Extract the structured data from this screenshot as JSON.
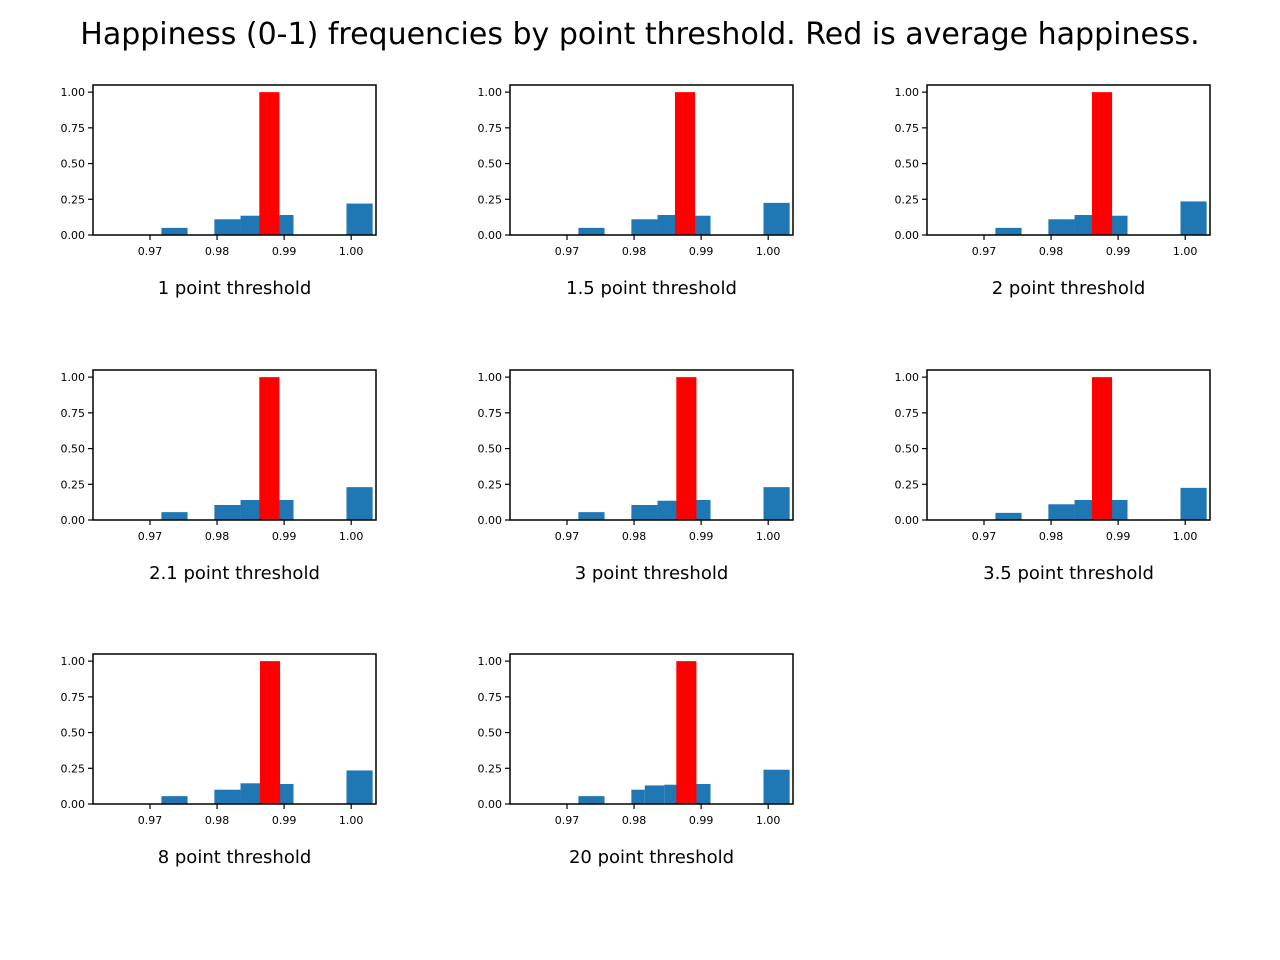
{
  "figure": {
    "title": "Happiness (0-1) frequencies by point threshold. Red is average happiness."
  },
  "colors": {
    "histogram": "#1f77b4",
    "average": "#ff0000"
  },
  "chart_data": [
    {
      "type": "bar",
      "xlabel": "1 point threshold",
      "ylabel": "",
      "xlim": [
        0.9615,
        1.0037
      ],
      "ylim": [
        0,
        1.05
      ],
      "xticks": [
        "0.97",
        "0.98",
        "0.99",
        "1.00"
      ],
      "yticks": [
        "0.00",
        "0.25",
        "0.50",
        "0.75",
        "1.00"
      ],
      "grid": false,
      "series": [
        {
          "bins": [
            {
              "x0": 0.9717,
              "x1": 0.9756,
              "value": 0.05
            },
            {
              "x0": 0.9796,
              "x1": 0.9835,
              "value": 0.11
            },
            {
              "x0": 0.9835,
              "x1": 0.9874,
              "value": 0.135
            },
            {
              "x0": 0.9874,
              "x1": 0.9914,
              "value": 0.14
            },
            {
              "x0": 0.9953,
              "x1": 0.9993,
              "value": 0.0
            },
            {
              "x0": 0.9993,
              "x1": 1.0032,
              "value": 0.22
            }
          ]
        },
        {
          "bins": [
            {
              "x0": 0.9863,
              "x1": 0.9893,
              "value": 1.0
            }
          ]
        }
      ]
    },
    {
      "type": "bar",
      "xlabel": "1.5 point threshold",
      "ylabel": "",
      "xlim": [
        0.9615,
        1.0037
      ],
      "ylim": [
        0,
        1.05
      ],
      "xticks": [
        "0.97",
        "0.98",
        "0.99",
        "1.00"
      ],
      "yticks": [
        "0.00",
        "0.25",
        "0.50",
        "0.75",
        "1.00"
      ],
      "grid": false,
      "series": [
        {
          "bins": [
            {
              "x0": 0.9717,
              "x1": 0.9756,
              "value": 0.05
            },
            {
              "x0": 0.9796,
              "x1": 0.9835,
              "value": 0.11
            },
            {
              "x0": 0.9835,
              "x1": 0.9874,
              "value": 0.14
            },
            {
              "x0": 0.9874,
              "x1": 0.9914,
              "value": 0.135
            },
            {
              "x0": 0.9993,
              "x1": 1.0032,
              "value": 0.225
            }
          ]
        },
        {
          "bins": [
            {
              "x0": 0.9861,
              "x1": 0.9891,
              "value": 1.0
            }
          ]
        }
      ]
    },
    {
      "type": "bar",
      "xlabel": "2 point threshold",
      "ylabel": "",
      "xlim": [
        0.9615,
        1.0037
      ],
      "ylim": [
        0,
        1.05
      ],
      "xticks": [
        "0.97",
        "0.98",
        "0.99",
        "1.00"
      ],
      "yticks": [
        "0.00",
        "0.25",
        "0.50",
        "0.75",
        "1.00"
      ],
      "grid": false,
      "series": [
        {
          "bins": [
            {
              "x0": 0.9717,
              "x1": 0.9756,
              "value": 0.05
            },
            {
              "x0": 0.9796,
              "x1": 0.9835,
              "value": 0.11
            },
            {
              "x0": 0.9835,
              "x1": 0.9874,
              "value": 0.14
            },
            {
              "x0": 0.9874,
              "x1": 0.9914,
              "value": 0.135
            },
            {
              "x0": 0.9993,
              "x1": 1.0032,
              "value": 0.235
            }
          ]
        },
        {
          "bins": [
            {
              "x0": 0.9861,
              "x1": 0.9891,
              "value": 1.0
            }
          ]
        }
      ]
    },
    {
      "type": "bar",
      "xlabel": "2.1 point threshold",
      "ylabel": "",
      "xlim": [
        0.9615,
        1.0037
      ],
      "ylim": [
        0,
        1.05
      ],
      "xticks": [
        "0.97",
        "0.98",
        "0.99",
        "1.00"
      ],
      "yticks": [
        "0.00",
        "0.25",
        "0.50",
        "0.75",
        "1.00"
      ],
      "grid": false,
      "series": [
        {
          "bins": [
            {
              "x0": 0.9717,
              "x1": 0.9756,
              "value": 0.055
            },
            {
              "x0": 0.9796,
              "x1": 0.9835,
              "value": 0.105
            },
            {
              "x0": 0.9835,
              "x1": 0.9874,
              "value": 0.14
            },
            {
              "x0": 0.9874,
              "x1": 0.9914,
              "value": 0.14
            },
            {
              "x0": 0.9993,
              "x1": 1.0032,
              "value": 0.23
            }
          ]
        },
        {
          "bins": [
            {
              "x0": 0.9863,
              "x1": 0.9893,
              "value": 1.0
            }
          ]
        }
      ]
    },
    {
      "type": "bar",
      "xlabel": "3 point threshold",
      "ylabel": "",
      "xlim": [
        0.9615,
        1.0037
      ],
      "ylim": [
        0,
        1.05
      ],
      "xticks": [
        "0.97",
        "0.98",
        "0.99",
        "1.00"
      ],
      "yticks": [
        "0.00",
        "0.25",
        "0.50",
        "0.75",
        "1.00"
      ],
      "grid": false,
      "series": [
        {
          "bins": [
            {
              "x0": 0.9717,
              "x1": 0.9756,
              "value": 0.055
            },
            {
              "x0": 0.9796,
              "x1": 0.9835,
              "value": 0.105
            },
            {
              "x0": 0.9835,
              "x1": 0.9874,
              "value": 0.135
            },
            {
              "x0": 0.9874,
              "x1": 0.9914,
              "value": 0.14
            },
            {
              "x0": 0.9993,
              "x1": 1.0032,
              "value": 0.23
            }
          ]
        },
        {
          "bins": [
            {
              "x0": 0.9863,
              "x1": 0.9893,
              "value": 1.0
            }
          ]
        }
      ]
    },
    {
      "type": "bar",
      "xlabel": "3.5 point threshold",
      "ylabel": "",
      "xlim": [
        0.9615,
        1.0037
      ],
      "ylim": [
        0,
        1.05
      ],
      "xticks": [
        "0.97",
        "0.98",
        "0.99",
        "1.00"
      ],
      "yticks": [
        "0.00",
        "0.25",
        "0.50",
        "0.75",
        "1.00"
      ],
      "grid": false,
      "series": [
        {
          "bins": [
            {
              "x0": 0.9717,
              "x1": 0.9756,
              "value": 0.05
            },
            {
              "x0": 0.9796,
              "x1": 0.9835,
              "value": 0.11
            },
            {
              "x0": 0.9835,
              "x1": 0.9874,
              "value": 0.14
            },
            {
              "x0": 0.9874,
              "x1": 0.9914,
              "value": 0.14
            },
            {
              "x0": 0.9993,
              "x1": 1.0032,
              "value": 0.225
            }
          ]
        },
        {
          "bins": [
            {
              "x0": 0.9861,
              "x1": 0.9891,
              "value": 1.0
            }
          ]
        }
      ]
    },
    {
      "type": "bar",
      "xlabel": "8 point threshold",
      "ylabel": "",
      "xlim": [
        0.9615,
        1.0037
      ],
      "ylim": [
        0,
        1.05
      ],
      "xticks": [
        "0.97",
        "0.98",
        "0.99",
        "1.00"
      ],
      "yticks": [
        "0.00",
        "0.25",
        "0.50",
        "0.75",
        "1.00"
      ],
      "grid": false,
      "series": [
        {
          "bins": [
            {
              "x0": 0.9717,
              "x1": 0.9756,
              "value": 0.055
            },
            {
              "x0": 0.9796,
              "x1": 0.9835,
              "value": 0.1
            },
            {
              "x0": 0.9835,
              "x1": 0.9874,
              "value": 0.145
            },
            {
              "x0": 0.9874,
              "x1": 0.9914,
              "value": 0.14
            },
            {
              "x0": 0.9993,
              "x1": 1.0032,
              "value": 0.235
            }
          ]
        },
        {
          "bins": [
            {
              "x0": 0.9864,
              "x1": 0.9894,
              "value": 1.0
            }
          ]
        }
      ]
    },
    {
      "type": "bar",
      "xlabel": "20 point threshold",
      "ylabel": "",
      "xlim": [
        0.9615,
        1.0037
      ],
      "ylim": [
        0,
        1.05
      ],
      "xticks": [
        "0.97",
        "0.98",
        "0.99",
        "1.00"
      ],
      "yticks": [
        "0.00",
        "0.25",
        "0.50",
        "0.75",
        "1.00"
      ],
      "grid": false,
      "series": [
        {
          "bins": [
            {
              "x0": 0.9717,
              "x1": 0.9756,
              "value": 0.055
            },
            {
              "x0": 0.9796,
              "x1": 0.9816,
              "value": 0.1
            },
            {
              "x0": 0.9816,
              "x1": 0.9845,
              "value": 0.13
            },
            {
              "x0": 0.9845,
              "x1": 0.9874,
              "value": 0.135
            },
            {
              "x0": 0.9874,
              "x1": 0.9914,
              "value": 0.14
            },
            {
              "x0": 0.9993,
              "x1": 1.0032,
              "value": 0.24
            }
          ]
        },
        {
          "bins": [
            {
              "x0": 0.9863,
              "x1": 0.9893,
              "value": 1.0
            }
          ]
        }
      ]
    }
  ]
}
